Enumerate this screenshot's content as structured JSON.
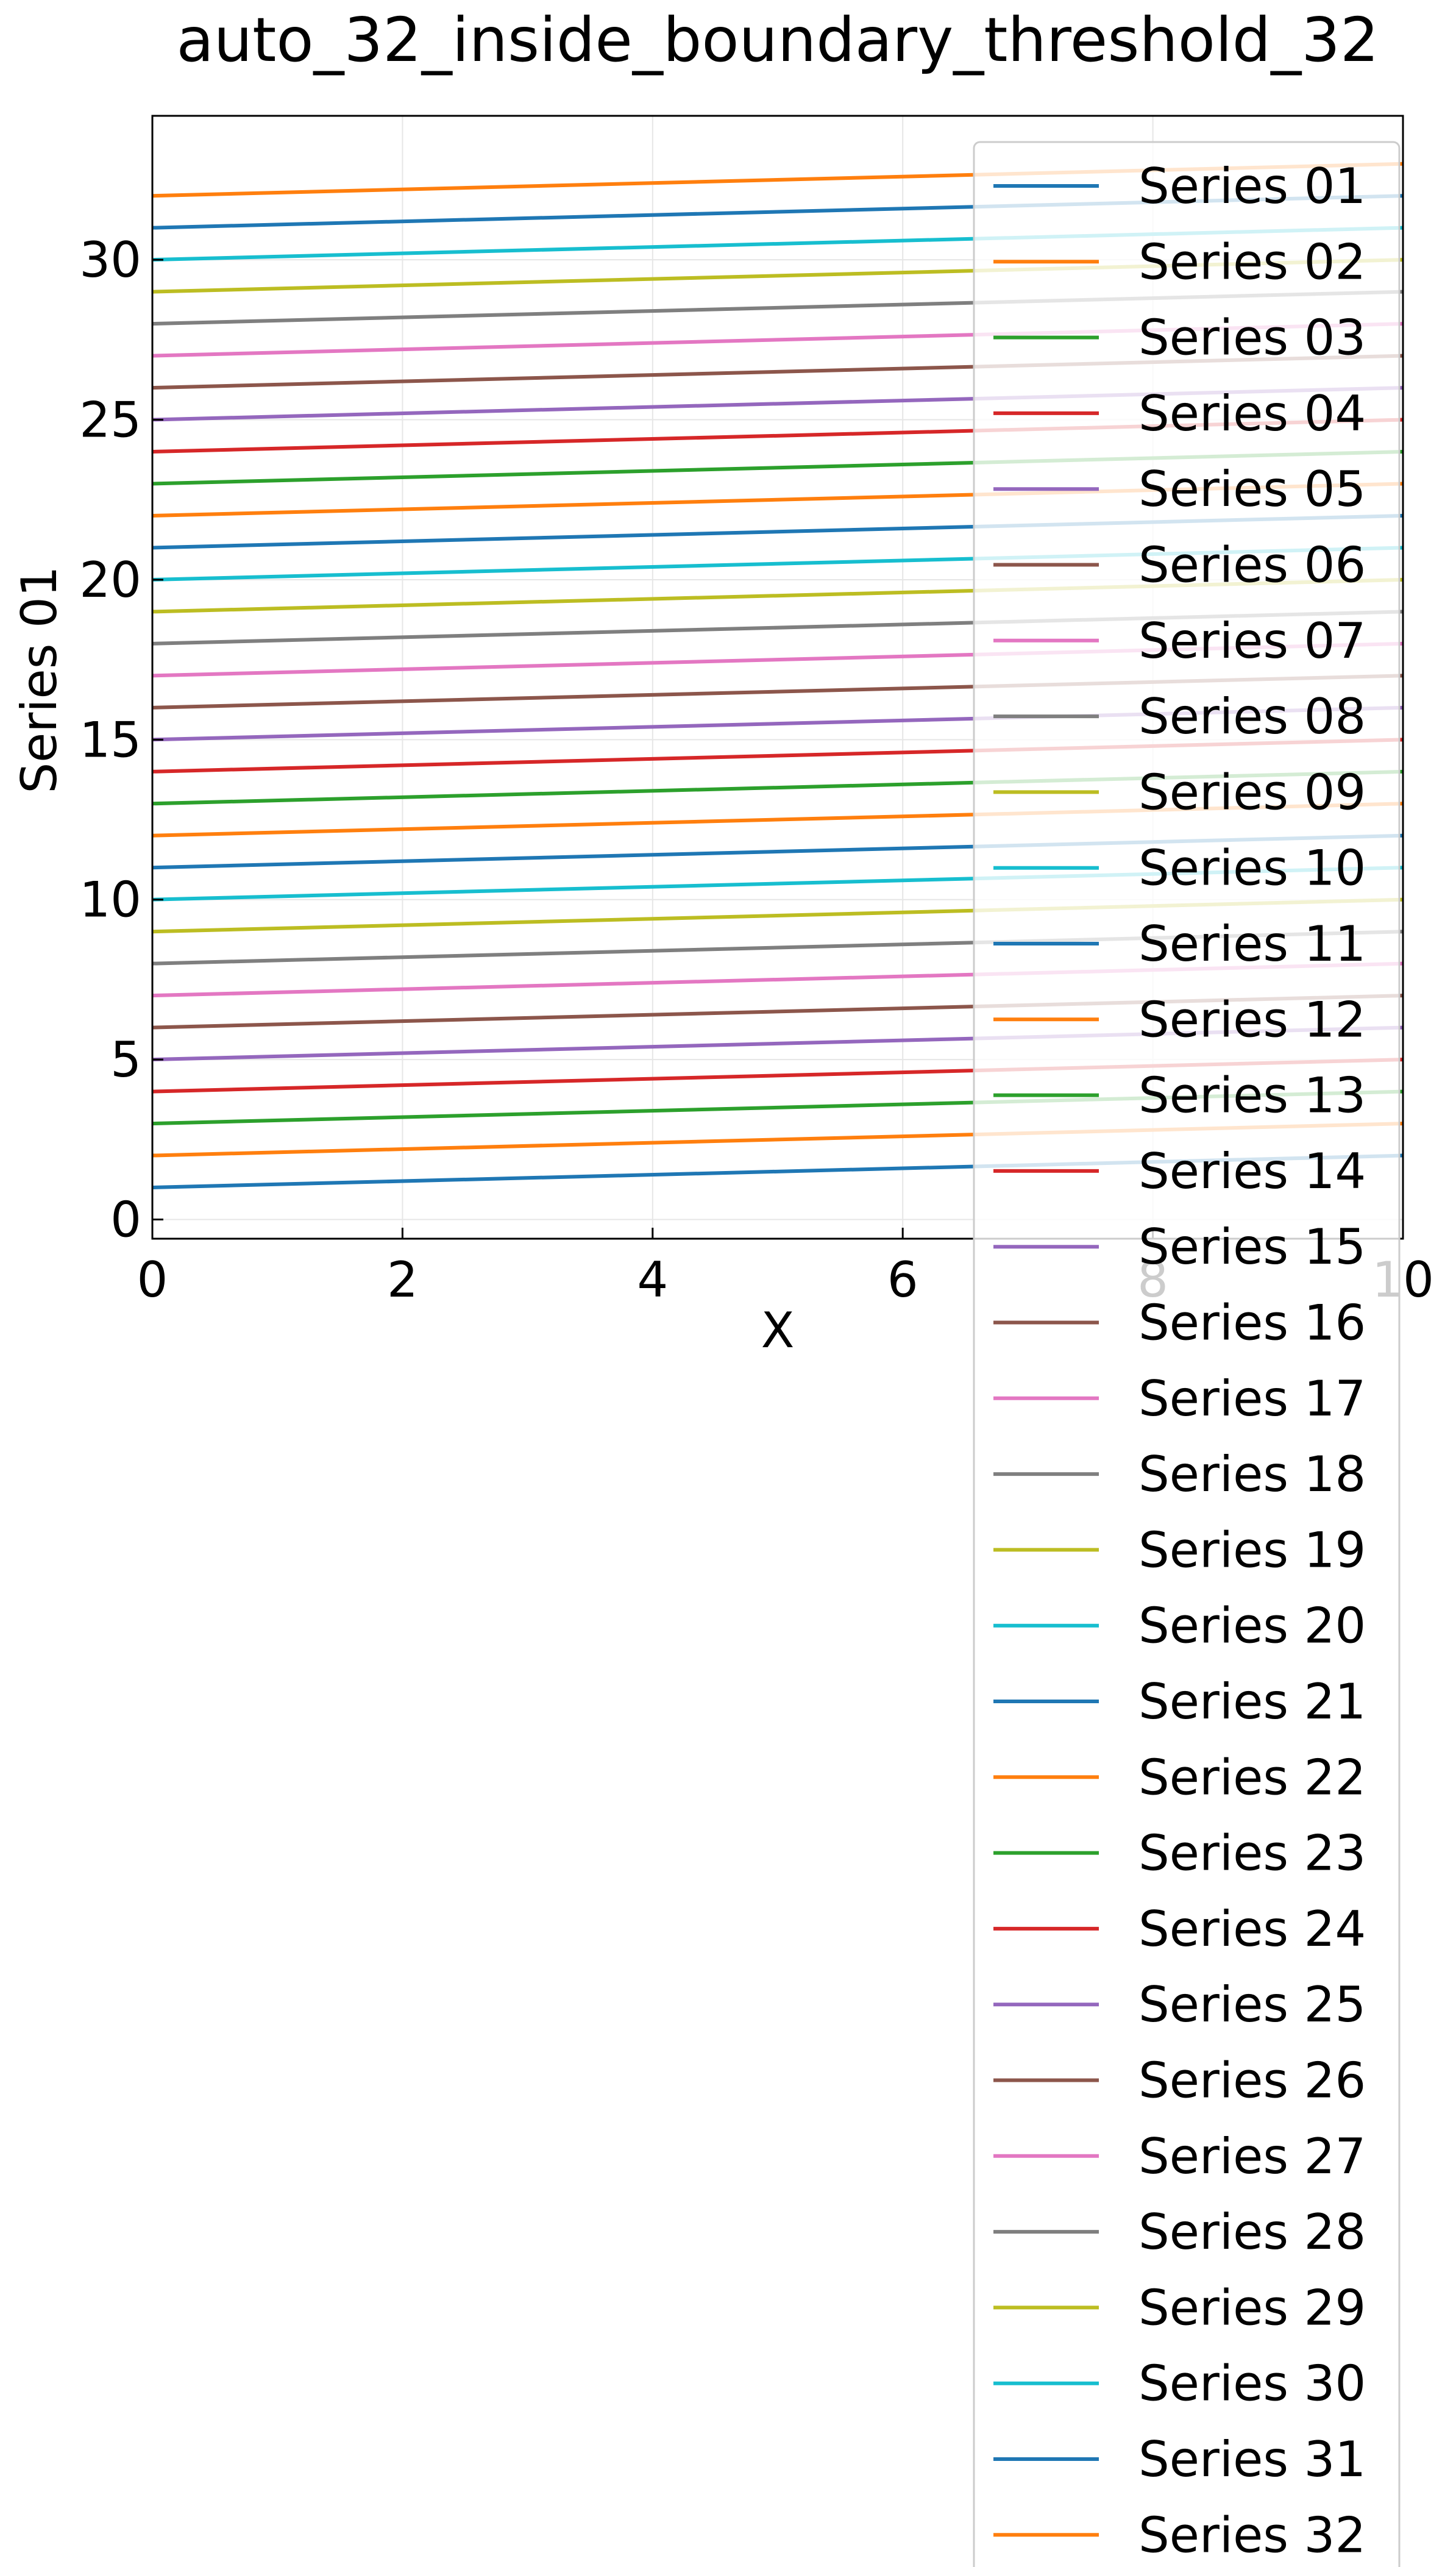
{
  "chart_data": {
    "type": "line",
    "title": "auto_32_inside_boundary_threshold_32",
    "xlabel": "X",
    "ylabel": "Series 01",
    "xlim": [
      0,
      10
    ],
    "ylim": [
      -0.6,
      34.5
    ],
    "xticks": [
      0,
      2,
      4,
      6,
      8,
      10
    ],
    "yticks": [
      0,
      5,
      10,
      15,
      20,
      25,
      30
    ],
    "xtick_labels": [
      "0",
      "2",
      "4",
      "6",
      "8",
      "10"
    ],
    "ytick_labels": [
      "0",
      "5",
      "10",
      "15",
      "20",
      "25",
      "30"
    ],
    "grid": true,
    "legend_position": "upper-right",
    "x": [
      0,
      10
    ],
    "series": [
      {
        "name": "Series 01",
        "color": "#1f77b4",
        "values": [
          1,
          2
        ]
      },
      {
        "name": "Series 02",
        "color": "#ff7f0e",
        "values": [
          2,
          3
        ]
      },
      {
        "name": "Series 03",
        "color": "#2ca02c",
        "values": [
          3,
          4
        ]
      },
      {
        "name": "Series 04",
        "color": "#d62728",
        "values": [
          4,
          5
        ]
      },
      {
        "name": "Series 05",
        "color": "#9467bd",
        "values": [
          5,
          6
        ]
      },
      {
        "name": "Series 06",
        "color": "#8c564b",
        "values": [
          6,
          7
        ]
      },
      {
        "name": "Series 07",
        "color": "#e377c2",
        "values": [
          7,
          8
        ]
      },
      {
        "name": "Series 08",
        "color": "#7f7f7f",
        "values": [
          8,
          9
        ]
      },
      {
        "name": "Series 09",
        "color": "#bcbd22",
        "values": [
          9,
          10
        ]
      },
      {
        "name": "Series 10",
        "color": "#17becf",
        "values": [
          10,
          11
        ]
      },
      {
        "name": "Series 11",
        "color": "#1f77b4",
        "values": [
          11,
          12
        ]
      },
      {
        "name": "Series 12",
        "color": "#ff7f0e",
        "values": [
          12,
          13
        ]
      },
      {
        "name": "Series 13",
        "color": "#2ca02c",
        "values": [
          13,
          14
        ]
      },
      {
        "name": "Series 14",
        "color": "#d62728",
        "values": [
          14,
          15
        ]
      },
      {
        "name": "Series 15",
        "color": "#9467bd",
        "values": [
          15,
          16
        ]
      },
      {
        "name": "Series 16",
        "color": "#8c564b",
        "values": [
          16,
          17
        ]
      },
      {
        "name": "Series 17",
        "color": "#e377c2",
        "values": [
          17,
          18
        ]
      },
      {
        "name": "Series 18",
        "color": "#7f7f7f",
        "values": [
          18,
          19
        ]
      },
      {
        "name": "Series 19",
        "color": "#bcbd22",
        "values": [
          19,
          20
        ]
      },
      {
        "name": "Series 20",
        "color": "#17becf",
        "values": [
          20,
          21
        ]
      },
      {
        "name": "Series 21",
        "color": "#1f77b4",
        "values": [
          21,
          22
        ]
      },
      {
        "name": "Series 22",
        "color": "#ff7f0e",
        "values": [
          22,
          23
        ]
      },
      {
        "name": "Series 23",
        "color": "#2ca02c",
        "values": [
          23,
          24
        ]
      },
      {
        "name": "Series 24",
        "color": "#d62728",
        "values": [
          24,
          25
        ]
      },
      {
        "name": "Series 25",
        "color": "#9467bd",
        "values": [
          25,
          26
        ]
      },
      {
        "name": "Series 26",
        "color": "#8c564b",
        "values": [
          26,
          27
        ]
      },
      {
        "name": "Series 27",
        "color": "#e377c2",
        "values": [
          27,
          28
        ]
      },
      {
        "name": "Series 28",
        "color": "#7f7f7f",
        "values": [
          28,
          29
        ]
      },
      {
        "name": "Series 29",
        "color": "#bcbd22",
        "values": [
          29,
          30
        ]
      },
      {
        "name": "Series 30",
        "color": "#17becf",
        "values": [
          30,
          31
        ]
      },
      {
        "name": "Series 31",
        "color": "#1f77b4",
        "values": [
          31,
          32
        ]
      },
      {
        "name": "Series 32",
        "color": "#ff7f0e",
        "values": [
          32,
          33
        ]
      }
    ]
  }
}
